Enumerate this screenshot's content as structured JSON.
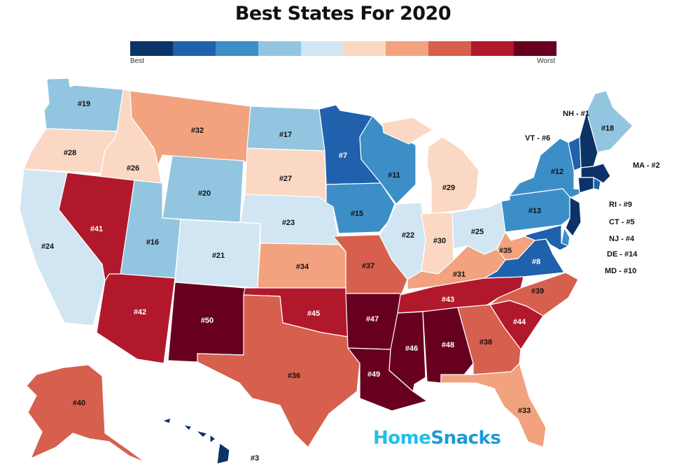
{
  "title": "Best States For 2020",
  "legend": {
    "best_label": "Best",
    "worst_label": "Worst",
    "colors": [
      "#0b3368",
      "#1f61ad",
      "#3c8ec7",
      "#92c5e0",
      "#d1e6f2",
      "#fbd8c4",
      "#f2a27f",
      "#d6604d",
      "#b2182b",
      "#67001f"
    ]
  },
  "states": [
    {
      "id": "WA",
      "label": "#19",
      "rank": 19
    },
    {
      "id": "OR",
      "label": "#28",
      "rank": 28
    },
    {
      "id": "CA",
      "label": "#24",
      "rank": 24
    },
    {
      "id": "ID",
      "label": "#26",
      "rank": 26
    },
    {
      "id": "NV",
      "label": "#41",
      "rank": 41
    },
    {
      "id": "MT",
      "label": "#32",
      "rank": 32
    },
    {
      "id": "WY",
      "label": "#20",
      "rank": 20
    },
    {
      "id": "UT",
      "label": "#16",
      "rank": 16
    },
    {
      "id": "AZ",
      "label": "#42",
      "rank": 42
    },
    {
      "id": "CO",
      "label": "#21",
      "rank": 21
    },
    {
      "id": "NM",
      "label": "#50",
      "rank": 50
    },
    {
      "id": "ND",
      "label": "#17",
      "rank": 17
    },
    {
      "id": "SD",
      "label": "#27",
      "rank": 27
    },
    {
      "id": "NE",
      "label": "#23",
      "rank": 23
    },
    {
      "id": "KS",
      "label": "#34",
      "rank": 34
    },
    {
      "id": "OK",
      "label": "#45",
      "rank": 45
    },
    {
      "id": "TX",
      "label": "#36",
      "rank": 36
    },
    {
      "id": "MN",
      "label": "#7",
      "rank": 7
    },
    {
      "id": "IA",
      "label": "#15",
      "rank": 15
    },
    {
      "id": "MO",
      "label": "#37",
      "rank": 37
    },
    {
      "id": "AR",
      "label": "#47",
      "rank": 47
    },
    {
      "id": "LA",
      "label": "#49",
      "rank": 49
    },
    {
      "id": "WI",
      "label": "#11",
      "rank": 11
    },
    {
      "id": "IL",
      "label": "#22",
      "rank": 22
    },
    {
      "id": "MI",
      "label": "#29",
      "rank": 29
    },
    {
      "id": "IN",
      "label": "#30",
      "rank": 30
    },
    {
      "id": "OH",
      "label": "#25",
      "rank": 25
    },
    {
      "id": "KY",
      "label": "#31",
      "rank": 31
    },
    {
      "id": "TN",
      "label": "#43",
      "rank": 43
    },
    {
      "id": "MS",
      "label": "#46",
      "rank": 46
    },
    {
      "id": "AL",
      "label": "#48",
      "rank": 48
    },
    {
      "id": "GA",
      "label": "#38",
      "rank": 38
    },
    {
      "id": "FL",
      "label": "#33",
      "rank": 33
    },
    {
      "id": "SC",
      "label": "#44",
      "rank": 44
    },
    {
      "id": "NC",
      "label": "#39",
      "rank": 39
    },
    {
      "id": "VA",
      "label": "#8",
      "rank": 8
    },
    {
      "id": "WV",
      "label": "#35",
      "rank": 35
    },
    {
      "id": "PA",
      "label": "#13",
      "rank": 13
    },
    {
      "id": "NY",
      "label": "#12",
      "rank": 12
    },
    {
      "id": "ME",
      "label": "#18",
      "rank": 18
    },
    {
      "id": "AK",
      "label": "#40",
      "rank": 40
    },
    {
      "id": "HI",
      "label": "#3",
      "rank": 3
    }
  ],
  "callouts": {
    "nh": "NH - #1",
    "vt": "VT - #6",
    "ma": "MA - #2",
    "ri": "RI - #9",
    "ct": "CT - #5",
    "nj": "NJ - #4",
    "de": "DE - #14",
    "md": "MD - #10"
  },
  "logo": {
    "part1": "Home",
    "part2": "Snacks"
  }
}
